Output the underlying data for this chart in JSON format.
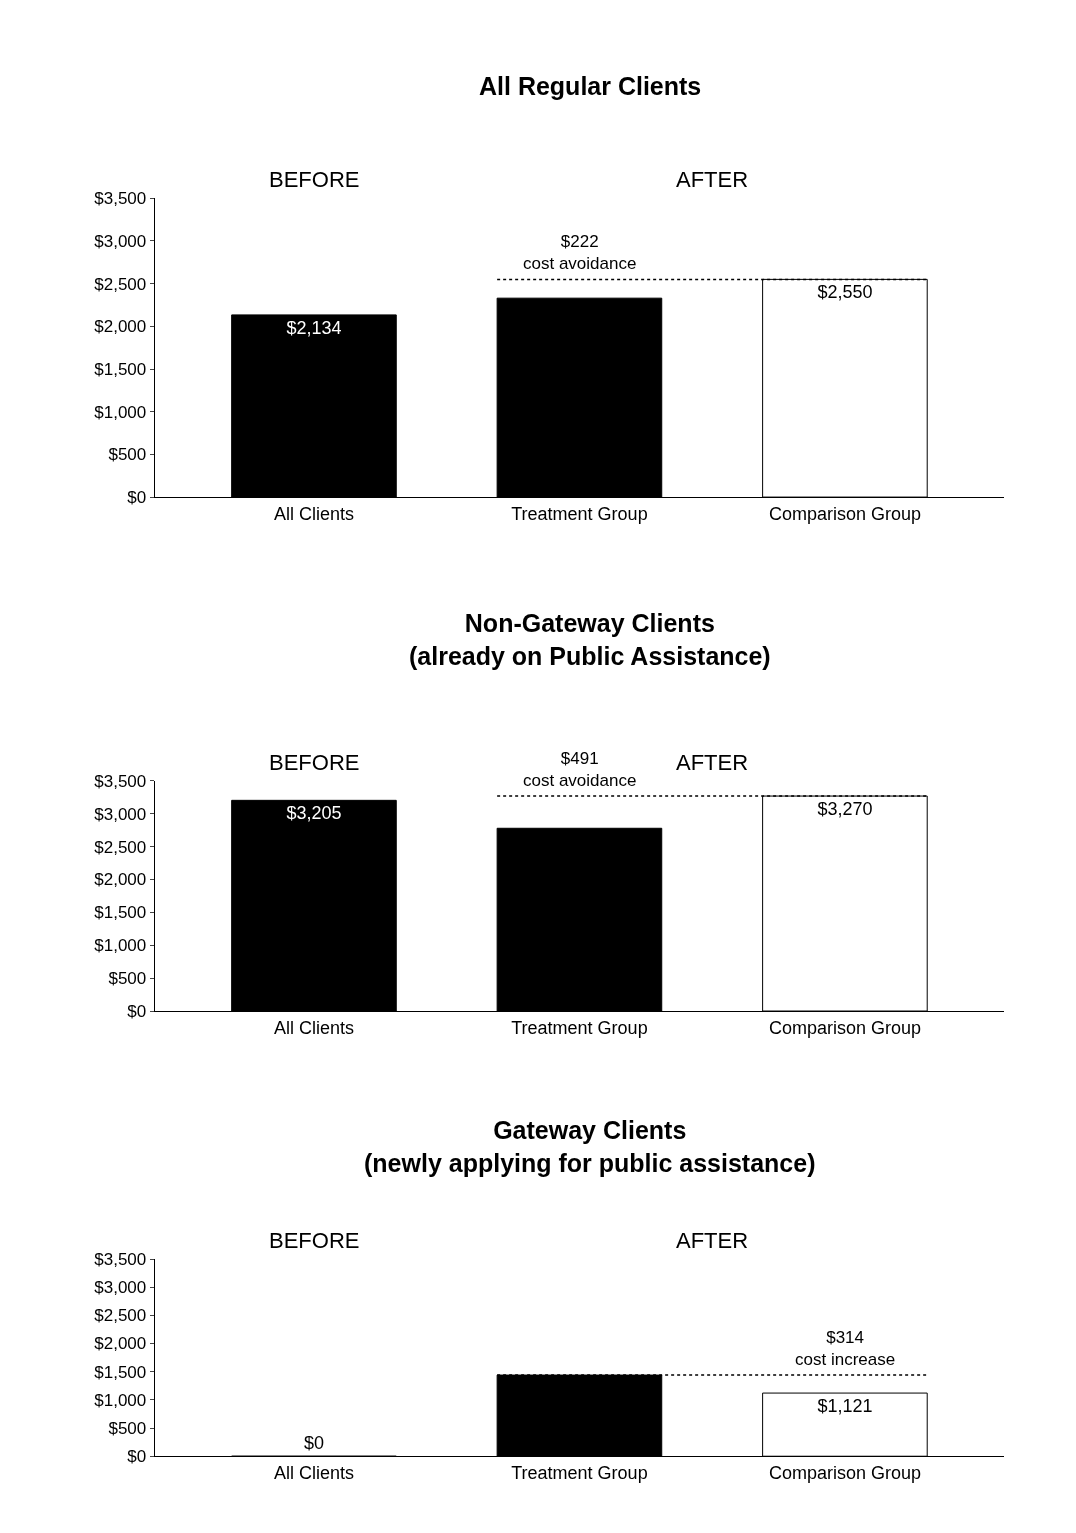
{
  "chart_data": [
    {
      "type": "bar",
      "title": "All Regular Clients",
      "categories": [
        "All Clients",
        "Treatment Group",
        "Comparison Group"
      ],
      "values": [
        2134,
        2330,
        2550
      ],
      "colors": [
        "#000000",
        "#000000",
        "#ffffff"
      ],
      "value_labels": [
        "$2,134",
        null,
        "$2,550"
      ],
      "ylim": [
        0,
        3500
      ],
      "yticks": [
        {
          "value": 0,
          "label": "$0"
        },
        {
          "value": 500,
          "label": "$500"
        },
        {
          "value": 1000,
          "label": "$1,000"
        },
        {
          "value": 1500,
          "label": "$1,500"
        },
        {
          "value": 2000,
          "label": "$2,000"
        },
        {
          "value": 2500,
          "label": "$2,500"
        },
        {
          "value": 3000,
          "label": "$3,000"
        },
        {
          "value": 3500,
          "label": "$3,500"
        }
      ],
      "annotations": [
        "BEFORE",
        "AFTER"
      ],
      "ref_lines": [
        {
          "axis": "y",
          "value": 2550,
          "label": "$222\ncost avoidance",
          "line_style": "dotted"
        }
      ]
    },
    {
      "type": "bar",
      "title": "Non-Gateway Clients\n(already on Public Assistance)",
      "categories": [
        "All Clients",
        "Treatment Group",
        "Comparison Group"
      ],
      "values": [
        3205,
        2780,
        3270
      ],
      "colors": [
        "#000000",
        "#000000",
        "#ffffff"
      ],
      "value_labels": [
        "$3,205",
        null,
        "$3,270"
      ],
      "ylim": [
        0,
        3500
      ],
      "yticks": [
        {
          "value": 0,
          "label": "$0"
        },
        {
          "value": 500,
          "label": "$500"
        },
        {
          "value": 1000,
          "label": "$1,000"
        },
        {
          "value": 1500,
          "label": "$1,500"
        },
        {
          "value": 2000,
          "label": "$2,000"
        },
        {
          "value": 2500,
          "label": "$2,500"
        },
        {
          "value": 3000,
          "label": "$3,000"
        },
        {
          "value": 3500,
          "label": "$3,500"
        }
      ],
      "annotations": [
        "BEFORE",
        "AFTER"
      ],
      "ref_lines": [
        {
          "axis": "y",
          "value": 3270,
          "label": "$491\ncost avoidance",
          "line_style": "dotted"
        }
      ]
    },
    {
      "type": "bar",
      "title": "Gateway Clients\n(newly applying for public assistance)",
      "categories": [
        "All Clients",
        "Treatment Group",
        "Comparison Group"
      ],
      "values": [
        0,
        1440,
        1121
      ],
      "colors": [
        "#000000",
        "#000000",
        "#ffffff"
      ],
      "value_labels": [
        "$0",
        null,
        "$1,121"
      ],
      "ylim": [
        0,
        3500
      ],
      "yticks": [
        {
          "value": 0,
          "label": "$0"
        },
        {
          "value": 500,
          "label": "$500"
        },
        {
          "value": 1000,
          "label": "$1,000"
        },
        {
          "value": 1500,
          "label": "$1,500"
        },
        {
          "value": 2000,
          "label": "$2,000"
        },
        {
          "value": 2500,
          "label": "$2,500"
        },
        {
          "value": 3000,
          "label": "$3,000"
        },
        {
          "value": 3500,
          "label": "$3,500"
        }
      ],
      "annotations": [
        "BEFORE",
        "AFTER"
      ],
      "ref_lines": [
        {
          "axis": "y",
          "value": 1440,
          "label": "$314\ncost increase",
          "line_style": "dotted"
        }
      ]
    }
  ]
}
